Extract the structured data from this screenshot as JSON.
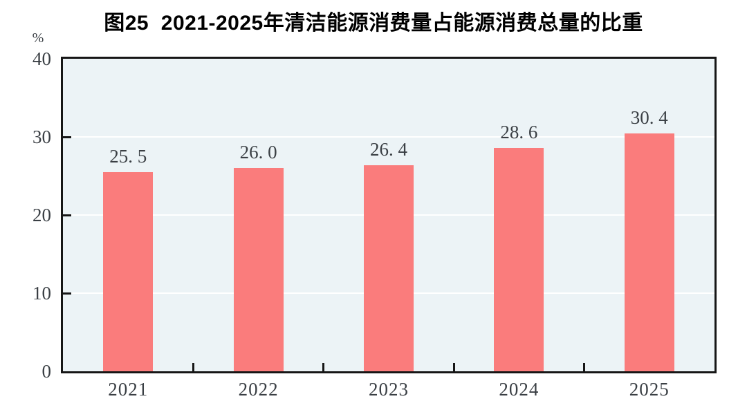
{
  "chart": {
    "title": "图25  2021-2025年清洁能源消费量占能源消费总量的比重",
    "unit_label": "%"
  },
  "chart_data": {
    "type": "bar",
    "title": "图25  2021-2025年清洁能源消费量占能源消费总量的比重",
    "categories": [
      "2021",
      "2022",
      "2023",
      "2024",
      "2025"
    ],
    "values": [
      25.5,
      26.0,
      26.4,
      28.6,
      30.4
    ],
    "value_labels": [
      "25. 5",
      "26. 0",
      "26. 4",
      "28. 6",
      "30. 4"
    ],
    "xlabel": "",
    "ylabel": "%",
    "ylim": [
      0,
      40
    ],
    "yticks": [
      0,
      10,
      20,
      30,
      40
    ],
    "grid": "horizontal",
    "legend_position": "none",
    "colors": {
      "bar": "#fa7c7c",
      "plot_background": "#ecf3f6",
      "grid_line": "#ffffff",
      "axis_border": "#161616",
      "number_text": "#3a3f44",
      "title_text": "#000000"
    }
  }
}
